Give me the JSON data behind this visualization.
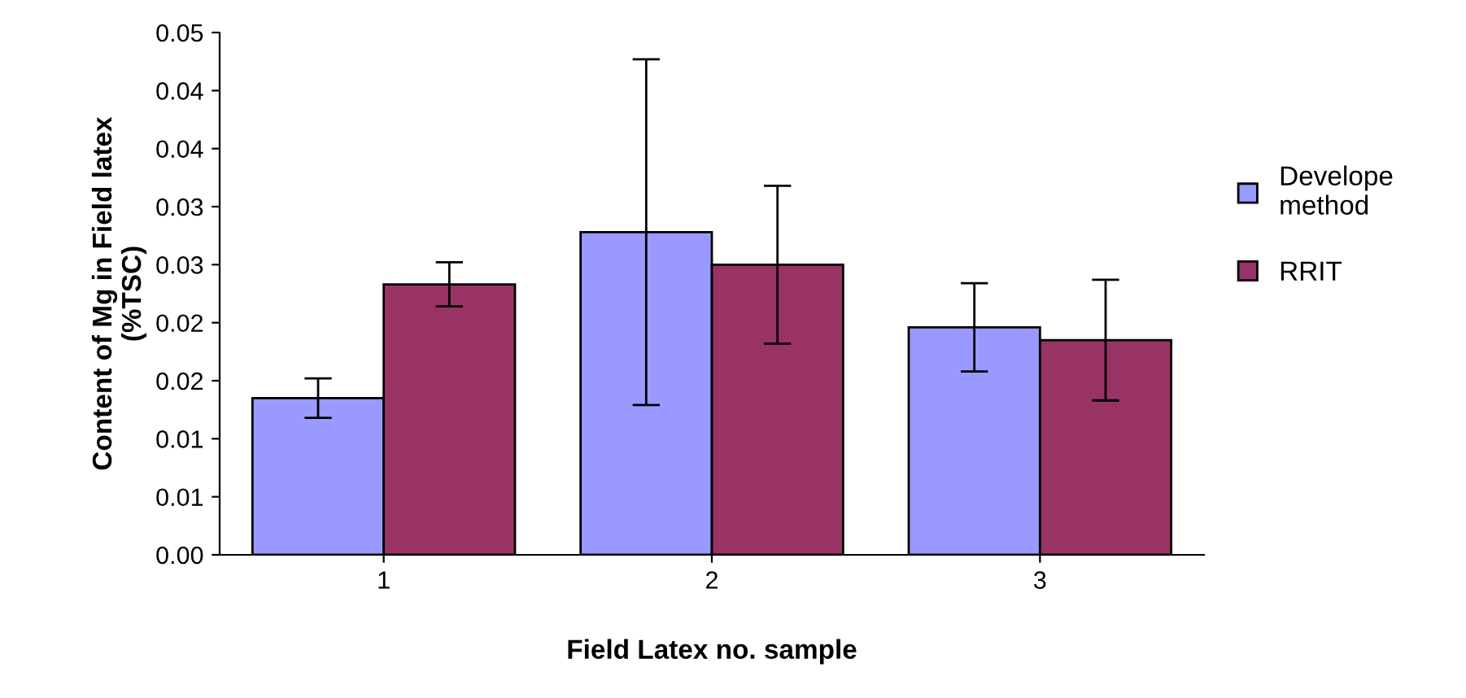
{
  "chart_data": {
    "type": "bar",
    "xlabel": "Field Latex no. sample",
    "ylabel": "Content of Mg in Field latex\n(%TSC)",
    "categories": [
      "1",
      "2",
      "3"
    ],
    "series": [
      {
        "name": "Develope\nmethod",
        "color": "#9999ff",
        "values": [
          0.0135,
          0.0278,
          0.0196
        ],
        "errors": [
          0.0017,
          0.0149,
          0.0038
        ]
      },
      {
        "name": "RRIT",
        "color": "#993366",
        "values": [
          0.0233,
          0.025,
          0.0185
        ],
        "errors": [
          0.0019,
          0.0068,
          0.0052
        ]
      }
    ],
    "ylim": [
      0,
      0.045
    ],
    "yticks": [
      {
        "value": 0,
        "label": "0.00"
      },
      {
        "value": 0.005,
        "label": "0.01"
      },
      {
        "value": 0.01,
        "label": "0.01"
      },
      {
        "value": 0.015,
        "label": "0.02"
      },
      {
        "value": 0.02,
        "label": "0.02"
      },
      {
        "value": 0.025,
        "label": "0.03"
      },
      {
        "value": 0.03,
        "label": "0.03"
      },
      {
        "value": 0.035,
        "label": "0.04"
      },
      {
        "value": 0.04,
        "label": "0.04"
      },
      {
        "value": 0.045,
        "label": "0.05"
      }
    ],
    "grid": false,
    "legend": "right"
  }
}
